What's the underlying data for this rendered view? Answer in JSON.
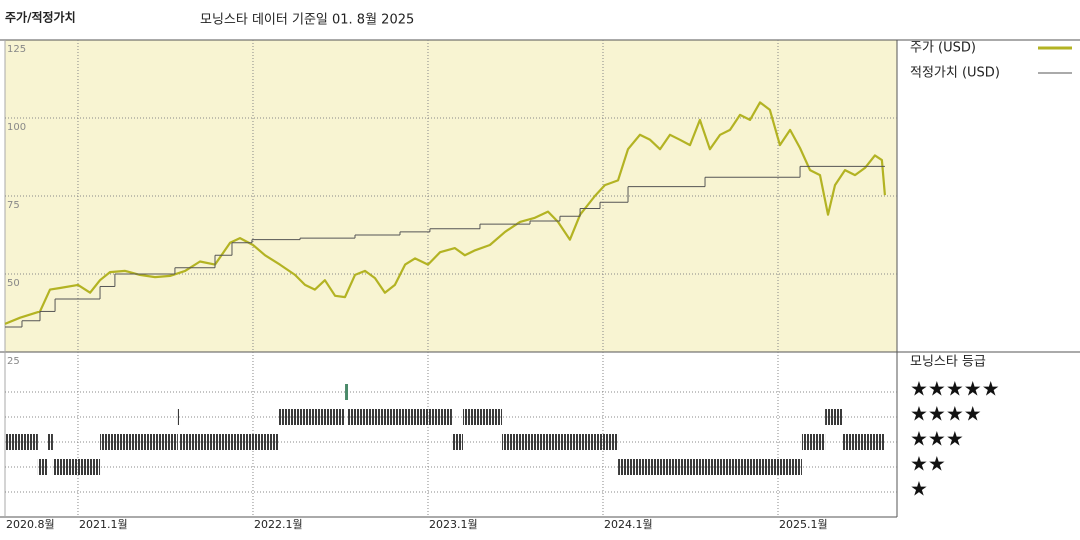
{
  "chart_data": [
    {
      "type": "line",
      "title": "주가/적정가치",
      "subtitle": "모닝스타 데이터 기준일 01. 8월 2025",
      "xlim": [
        2020.583,
        2025.68
      ],
      "xticks": [
        {
          "value": 2020.583,
          "label": "2020.8월"
        },
        {
          "value": 2021.0,
          "label": "2021.1월"
        },
        {
          "value": 2022.0,
          "label": "2022.1월"
        },
        {
          "value": 2023.0,
          "label": "2023.1월"
        },
        {
          "value": 2024.0,
          "label": "2024.1월"
        },
        {
          "value": 2025.0,
          "label": "2025.1월"
        }
      ],
      "ylim": [
        25,
        125
      ],
      "yticks": [
        25,
        50,
        75,
        100,
        125
      ],
      "grid": true,
      "legend": "top-right",
      "series": [
        {
          "name": "주가 (USD)",
          "color": "#b3b323",
          "x": [
            2020.583,
            2020.669,
            2020.783,
            2020.84,
            2020.897,
            2021.0,
            2021.069,
            2021.126,
            2021.183,
            2021.269,
            2021.354,
            2021.44,
            2021.526,
            2021.612,
            2021.697,
            2021.783,
            2021.869,
            2021.926,
            2022.0,
            2022.069,
            2022.154,
            2022.24,
            2022.297,
            2022.354,
            2022.411,
            2022.469,
            2022.526,
            2022.583,
            2022.64,
            2022.697,
            2022.754,
            2022.811,
            2022.869,
            2022.926,
            2023.0,
            2023.069,
            2023.154,
            2023.211,
            2023.269,
            2023.354,
            2023.44,
            2023.526,
            2023.611,
            2023.686,
            2023.743,
            2023.811,
            2023.869,
            2023.954,
            2024.011,
            2024.086,
            2024.143,
            2024.211,
            2024.269,
            2024.326,
            2024.383,
            2024.44,
            2024.497,
            2024.554,
            2024.611,
            2024.669,
            2024.726,
            2024.783,
            2024.84,
            2024.897,
            2024.954,
            2025.011,
            2025.069,
            2025.126,
            2025.183,
            2025.24,
            2025.286,
            2025.326,
            2025.383,
            2025.44,
            2025.497,
            2025.554,
            2025.594,
            2025.611
          ],
          "values": [
            34,
            36,
            38,
            45,
            45.5,
            46.5,
            44,
            48,
            50.6,
            51,
            49.7,
            49,
            49.4,
            51,
            54,
            53,
            60,
            61.5,
            59.3,
            56,
            53,
            49.7,
            46.5,
            45,
            48,
            43,
            42.6,
            49.7,
            51,
            48.7,
            44,
            46.5,
            53,
            55,
            53,
            57,
            58.3,
            56,
            57.6,
            59.3,
            63.5,
            66.7,
            68,
            70,
            66.7,
            61,
            69,
            75,
            78.5,
            80,
            90,
            94.6,
            93,
            90,
            94.6,
            93,
            91.3,
            99.4,
            90,
            94.6,
            96.2,
            101,
            99.4,
            105,
            102.6,
            91.3,
            96.2,
            90.4,
            83.3,
            81.7,
            69,
            78.5,
            83.3,
            81.7,
            84,
            88,
            86.5,
            75.3
          ]
        },
        {
          "name": "적정가치 (USD)",
          "color": "#555555",
          "step": true,
          "x": [
            2020.583,
            2020.68,
            2020.783,
            2020.869,
            2021.126,
            2021.211,
            2021.554,
            2021.783,
            2021.88,
            2021.994,
            2022.269,
            2022.583,
            2022.84,
            2023.011,
            2023.297,
            2023.583,
            2023.754,
            2023.869,
            2023.983,
            2024.143,
            2024.583,
            2025.126,
            2025.611
          ],
          "values": [
            33,
            35,
            38,
            42,
            46,
            50,
            52,
            56,
            60,
            61,
            61.5,
            62.5,
            63.5,
            64.5,
            66,
            67,
            68.5,
            71,
            73,
            78,
            81,
            84.5,
            84.5
          ]
        }
      ]
    },
    {
      "type": "rating",
      "title": "모닝스타 등급",
      "color": "#3a3a3a",
      "highlight_color": "#4a8a6a",
      "ylim": [
        0,
        6.6
      ],
      "yticks": [
        {
          "value": 5,
          "label": "★★★★★"
        },
        {
          "value": 4,
          "label": "★★★★"
        },
        {
          "value": 3,
          "label": "★★★"
        },
        {
          "value": 2,
          "label": "★★"
        },
        {
          "value": 1,
          "label": "★"
        }
      ],
      "start": [
        2020.583,
        2020.771,
        2020.823,
        2020.857,
        2021.126,
        2021.571,
        2021.583,
        2022.143,
        2022.526,
        2022.543,
        2023.137,
        2023.2,
        2023.423,
        2024.086,
        2025.137,
        2025.269,
        2025.371
      ],
      "end": [
        2020.771,
        2020.823,
        2020.857,
        2021.126,
        2021.571,
        2021.583,
        2022.143,
        2022.526,
        2022.543,
        2023.137,
        2023.2,
        2023.423,
        2024.086,
        2025.137,
        2025.269,
        2025.371,
        2025.611
      ],
      "values": [
        3,
        2,
        3,
        2,
        3,
        4,
        3,
        4,
        5,
        4,
        3,
        4,
        3,
        2,
        3,
        4,
        3
      ]
    }
  ]
}
